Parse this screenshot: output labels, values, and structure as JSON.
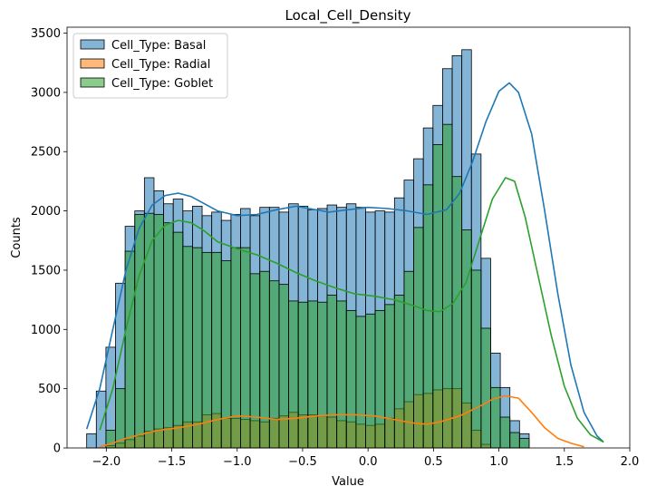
{
  "chart_data": {
    "type": "bar",
    "subtype": "histogram-with-kde",
    "title": "Local_Cell_Density",
    "xlabel": "Value",
    "ylabel": "Counts",
    "xlim": [
      -2.3,
      2.0
    ],
    "ylim": [
      0,
      3550
    ],
    "xticks": [
      -2.0,
      -1.5,
      -1.0,
      -0.5,
      0.0,
      0.5,
      1.0,
      1.5,
      2.0
    ],
    "xtick_labels": [
      "−2.0",
      "−1.5",
      "−1.0",
      "−0.5",
      "0.0",
      "0.5",
      "1.0",
      "1.5",
      "2.0"
    ],
    "yticks": [
      0,
      500,
      1000,
      1500,
      2000,
      2500,
      3000,
      3500
    ],
    "ytick_labels": [
      "0",
      "500",
      "1000",
      "1500",
      "2000",
      "2500",
      "3000",
      "3500"
    ],
    "grid": false,
    "legend_position": "upper-left",
    "bin_start": -2.15,
    "bin_width": 0.0735,
    "series": [
      {
        "name": "Cell_Type: Basal",
        "color": "#1f77b4",
        "fill_alpha": 0.55,
        "values": [
          120,
          480,
          850,
          1390,
          1870,
          2000,
          2280,
          2170,
          2060,
          2100,
          2000,
          2040,
          1960,
          1990,
          1920,
          1970,
          2020,
          1960,
          2030,
          2030,
          1990,
          2060,
          2040,
          2010,
          2020,
          2050,
          2030,
          2060,
          2030,
          1990,
          2000,
          1990,
          2110,
          2260,
          2440,
          2700,
          2890,
          3200,
          3310,
          3360,
          2480,
          1600,
          800,
          510,
          230,
          120
        ],
        "kde": [
          [
            -2.15,
            160
          ],
          [
            -2.05,
            500
          ],
          [
            -1.95,
            1000
          ],
          [
            -1.85,
            1500
          ],
          [
            -1.75,
            1850
          ],
          [
            -1.65,
            2050
          ],
          [
            -1.55,
            2130
          ],
          [
            -1.45,
            2150
          ],
          [
            -1.35,
            2120
          ],
          [
            -1.25,
            2060
          ],
          [
            -1.15,
            2000
          ],
          [
            -1.0,
            1960
          ],
          [
            -0.85,
            1970
          ],
          [
            -0.7,
            2010
          ],
          [
            -0.55,
            2040
          ],
          [
            -0.45,
            2020
          ],
          [
            -0.3,
            1990
          ],
          [
            -0.15,
            2010
          ],
          [
            0.0,
            2030
          ],
          [
            0.15,
            2020
          ],
          [
            0.3,
            2000
          ],
          [
            0.45,
            1970
          ],
          [
            0.6,
            2010
          ],
          [
            0.7,
            2150
          ],
          [
            0.8,
            2420
          ],
          [
            0.9,
            2750
          ],
          [
            1.0,
            3010
          ],
          [
            1.08,
            3080
          ],
          [
            1.15,
            3000
          ],
          [
            1.25,
            2650
          ],
          [
            1.35,
            2000
          ],
          [
            1.45,
            1300
          ],
          [
            1.55,
            700
          ],
          [
            1.65,
            300
          ],
          [
            1.75,
            100
          ],
          [
            1.8,
            50
          ]
        ]
      },
      {
        "name": "Cell_Type: Radial",
        "color": "#ff7f0e",
        "fill_alpha": 0.55,
        "values": [
          0,
          0,
          20,
          40,
          70,
          100,
          140,
          160,
          170,
          190,
          220,
          220,
          280,
          290,
          250,
          250,
          240,
          230,
          220,
          250,
          270,
          300,
          280,
          280,
          270,
          260,
          230,
          220,
          200,
          190,
          200,
          250,
          330,
          390,
          450,
          460,
          490,
          500,
          500,
          380,
          150,
          30,
          0,
          0,
          0,
          0
        ],
        "kde": [
          [
            -2.05,
            10
          ],
          [
            -1.95,
            40
          ],
          [
            -1.85,
            80
          ],
          [
            -1.75,
            110
          ],
          [
            -1.6,
            150
          ],
          [
            -1.45,
            170
          ],
          [
            -1.3,
            200
          ],
          [
            -1.15,
            240
          ],
          [
            -1.0,
            270
          ],
          [
            -0.85,
            260
          ],
          [
            -0.7,
            240
          ],
          [
            -0.55,
            250
          ],
          [
            -0.4,
            270
          ],
          [
            -0.25,
            280
          ],
          [
            -0.1,
            280
          ],
          [
            0.05,
            270
          ],
          [
            0.2,
            240
          ],
          [
            0.35,
            210
          ],
          [
            0.45,
            200
          ],
          [
            0.55,
            220
          ],
          [
            0.7,
            270
          ],
          [
            0.85,
            350
          ],
          [
            0.95,
            410
          ],
          [
            1.05,
            440
          ],
          [
            1.15,
            420
          ],
          [
            1.25,
            300
          ],
          [
            1.35,
            170
          ],
          [
            1.45,
            80
          ],
          [
            1.55,
            40
          ],
          [
            1.65,
            10
          ]
        ]
      },
      {
        "name": "Cell_Type: Goblet",
        "color": "#2ca02c",
        "fill_alpha": 0.55,
        "values": [
          0,
          0,
          150,
          500,
          1660,
          1970,
          1980,
          1970,
          1900,
          1820,
          1700,
          1690,
          1650,
          1650,
          1580,
          1690,
          1690,
          1470,
          1490,
          1410,
          1380,
          1240,
          1230,
          1240,
          1230,
          1290,
          1240,
          1160,
          1110,
          1130,
          1160,
          1210,
          1290,
          1490,
          1860,
          2220,
          2560,
          2730,
          2290,
          1840,
          1500,
          1010,
          510,
          260,
          130,
          80
        ],
        "kde": [
          [
            -2.05,
            150
          ],
          [
            -1.95,
            500
          ],
          [
            -1.85,
            1000
          ],
          [
            -1.75,
            1450
          ],
          [
            -1.65,
            1750
          ],
          [
            -1.55,
            1880
          ],
          [
            -1.45,
            1920
          ],
          [
            -1.35,
            1900
          ],
          [
            -1.25,
            1830
          ],
          [
            -1.15,
            1740
          ],
          [
            -1.0,
            1680
          ],
          [
            -0.85,
            1630
          ],
          [
            -0.7,
            1560
          ],
          [
            -0.55,
            1480
          ],
          [
            -0.4,
            1410
          ],
          [
            -0.25,
            1350
          ],
          [
            -0.1,
            1300
          ],
          [
            0.05,
            1280
          ],
          [
            0.2,
            1250
          ],
          [
            0.35,
            1200
          ],
          [
            0.45,
            1160
          ],
          [
            0.55,
            1150
          ],
          [
            0.65,
            1220
          ],
          [
            0.75,
            1400
          ],
          [
            0.85,
            1750
          ],
          [
            0.95,
            2100
          ],
          [
            1.05,
            2280
          ],
          [
            1.12,
            2250
          ],
          [
            1.2,
            1950
          ],
          [
            1.3,
            1450
          ],
          [
            1.4,
            950
          ],
          [
            1.5,
            520
          ],
          [
            1.6,
            250
          ],
          [
            1.7,
            110
          ],
          [
            1.8,
            50
          ]
        ]
      }
    ]
  }
}
